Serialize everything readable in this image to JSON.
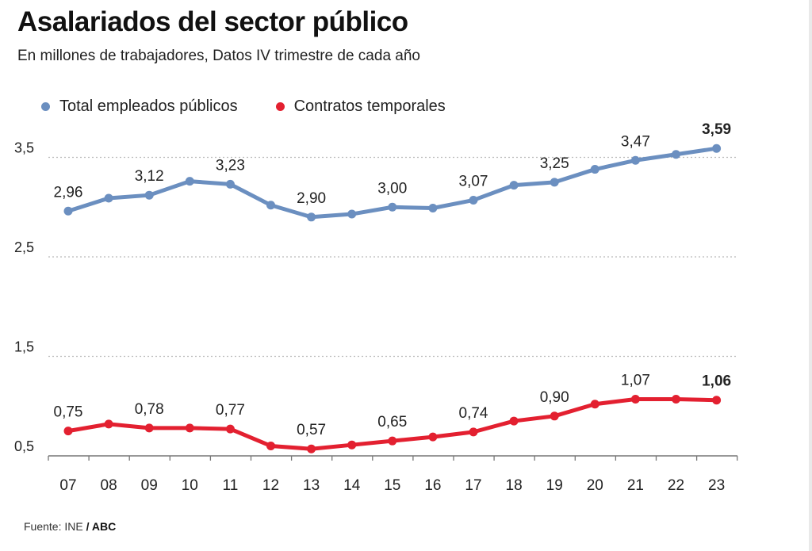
{
  "header": {
    "title": "Asalariados del sector público",
    "subtitle": "En millones de trabajadores, Datos IV trimestre de cada año"
  },
  "source": {
    "prefix": "Fuente: INE",
    "sep": " / ",
    "brand": "ABC"
  },
  "chart_data": {
    "type": "line",
    "title": "Asalariados del sector público",
    "xlabel": "",
    "ylabel": "En millones de trabajadores",
    "categories": [
      "07",
      "08",
      "09",
      "10",
      "11",
      "12",
      "13",
      "14",
      "15",
      "16",
      "17",
      "18",
      "19",
      "20",
      "21",
      "22",
      "23"
    ],
    "yticks": [
      0.5,
      1.5,
      2.5,
      3.5
    ],
    "ytick_labels": [
      "0,5",
      "1,5",
      "2,5",
      "3,5"
    ],
    "ylim": [
      0.5,
      3.75
    ],
    "grid": "horizontal dotted",
    "legend_position": "top-left",
    "series": [
      {
        "name": "Total empleados públicos",
        "color": "#6b8fc0",
        "values": [
          2.96,
          3.09,
          3.12,
          3.26,
          3.23,
          3.02,
          2.9,
          2.93,
          3.0,
          2.99,
          3.07,
          3.22,
          3.25,
          3.38,
          3.47,
          3.53,
          3.59
        ],
        "labels": [
          "2,96",
          null,
          "3,12",
          null,
          "3,23",
          null,
          "2,90",
          null,
          "3,00",
          null,
          "3,07",
          null,
          "3,25",
          null,
          "3,47",
          null,
          "3,59"
        ]
      },
      {
        "name": "Contratos temporales",
        "color": "#e32030",
        "values": [
          0.75,
          0.82,
          0.78,
          0.78,
          0.77,
          0.6,
          0.57,
          0.61,
          0.65,
          0.69,
          0.74,
          0.85,
          0.9,
          1.02,
          1.07,
          1.07,
          1.06
        ],
        "labels": [
          "0,75",
          null,
          "0,78",
          null,
          "0,77",
          null,
          "0,57",
          null,
          "0,65",
          null,
          "0,74",
          null,
          "0,90",
          null,
          "1,07",
          null,
          "1,06"
        ]
      }
    ]
  }
}
